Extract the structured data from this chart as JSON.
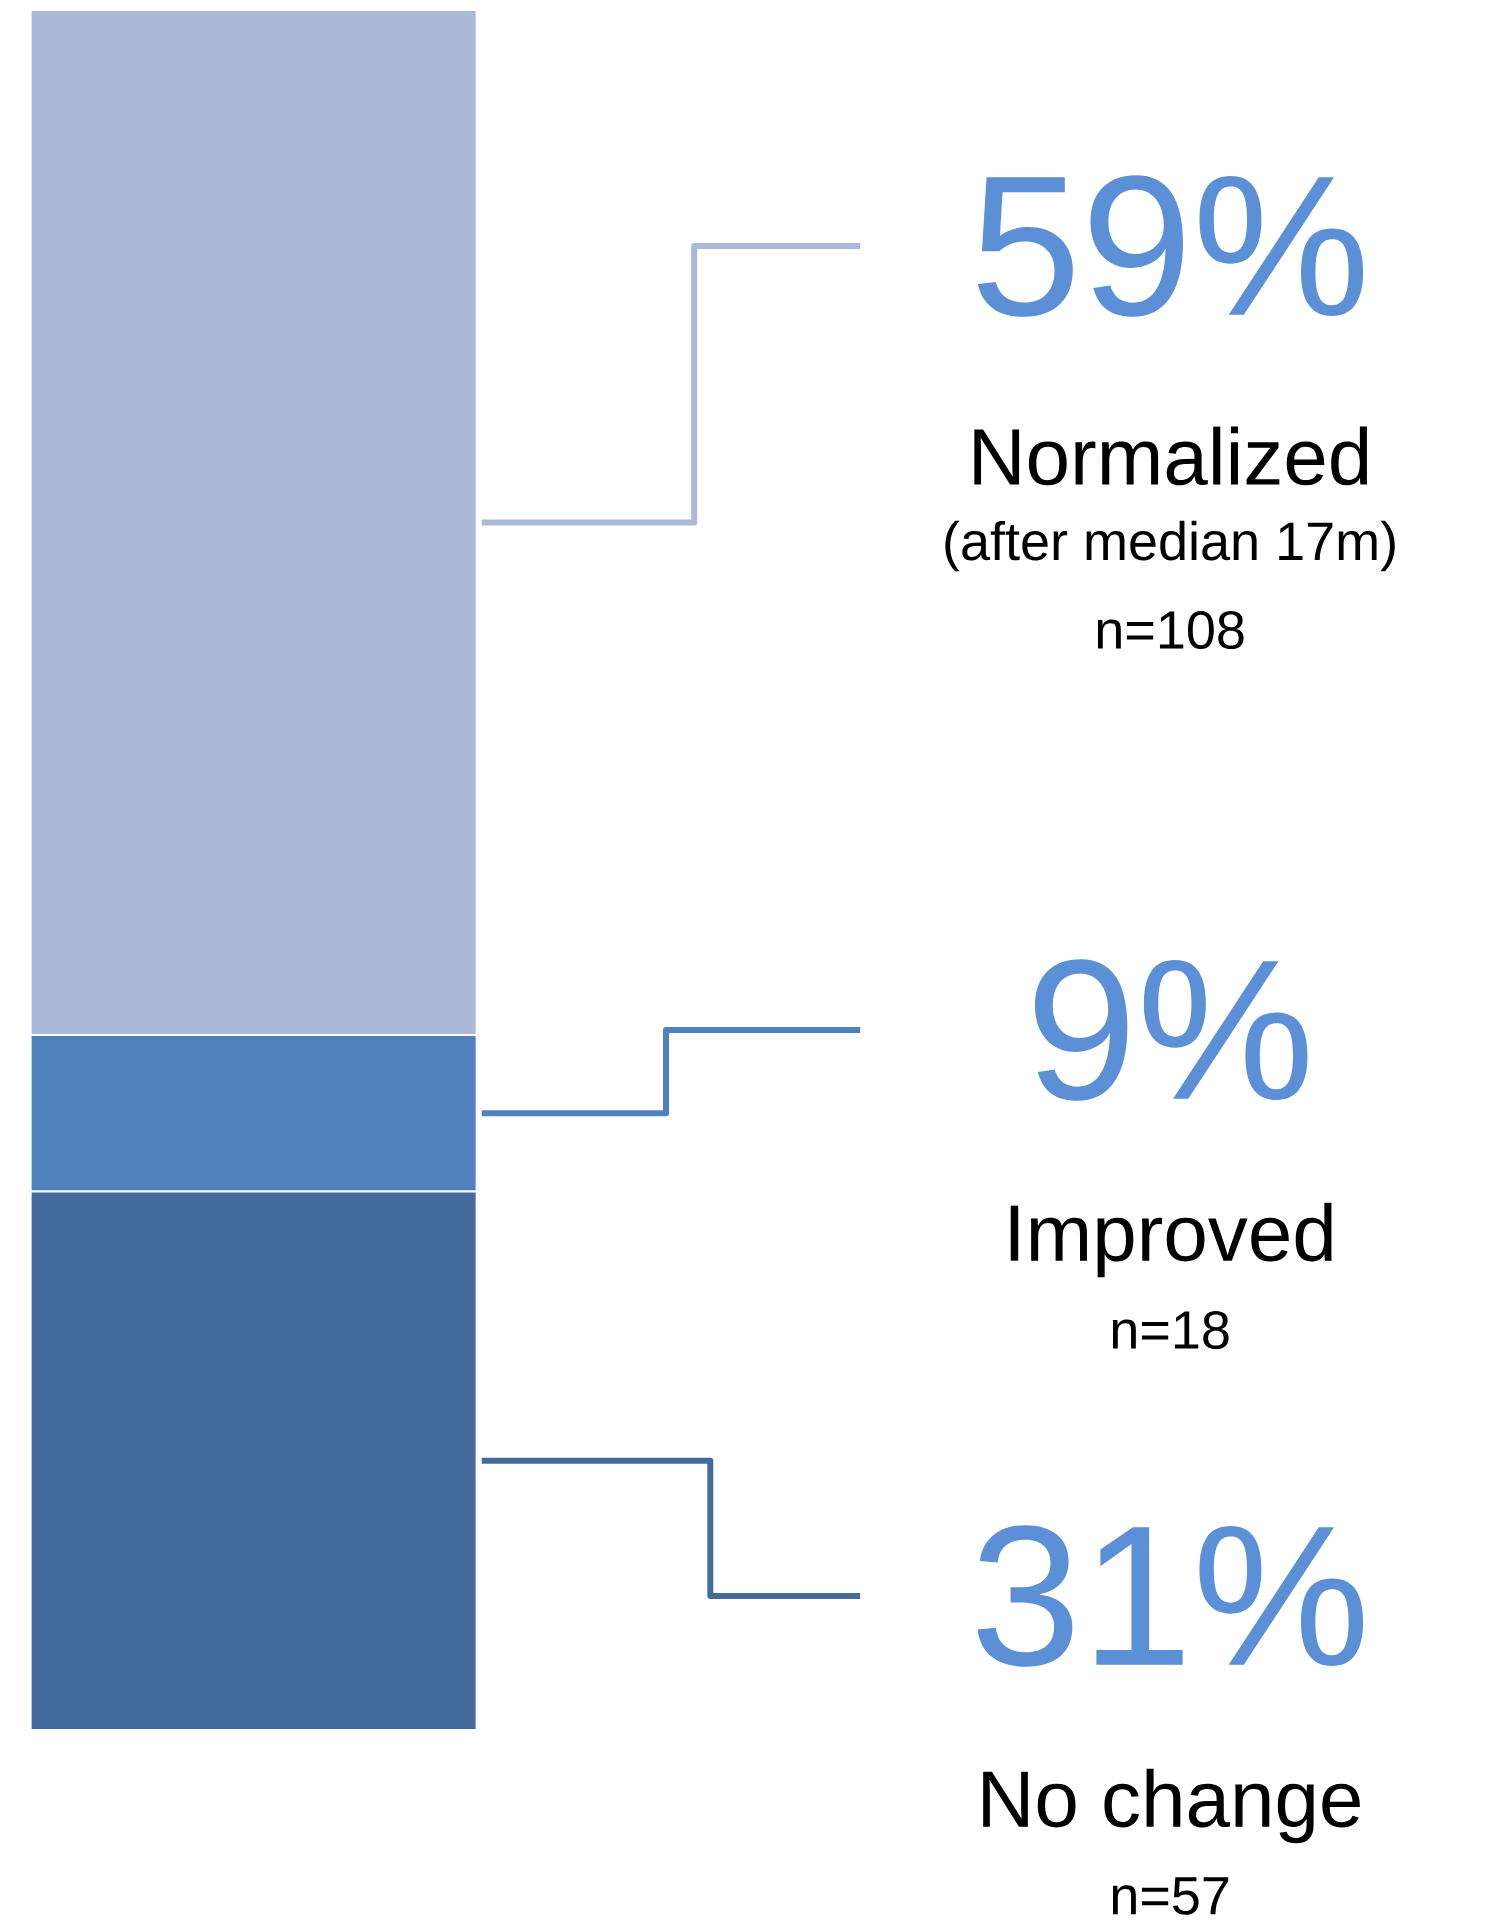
{
  "chart_data": {
    "type": "bar",
    "stacked": true,
    "categories": [
      null
    ],
    "series": [
      {
        "name": "No change",
        "color": "#426b9b",
        "values": [
          31
        ],
        "value_labels": [
          "31%"
        ]
      },
      {
        "name": "Improved",
        "color": "#4f81bd",
        "values": [
          9
        ],
        "value_labels": [
          "9%"
        ]
      },
      {
        "name": "Normalized",
        "color": "#aab9d7",
        "values": [
          59
        ],
        "value_labels": [
          "59%"
        ]
      }
    ],
    "ylim": [
      0,
      99
    ],
    "annotations": [
      "(after median 17m)",
      "n=108",
      "n=18",
      "n=57"
    ]
  }
}
